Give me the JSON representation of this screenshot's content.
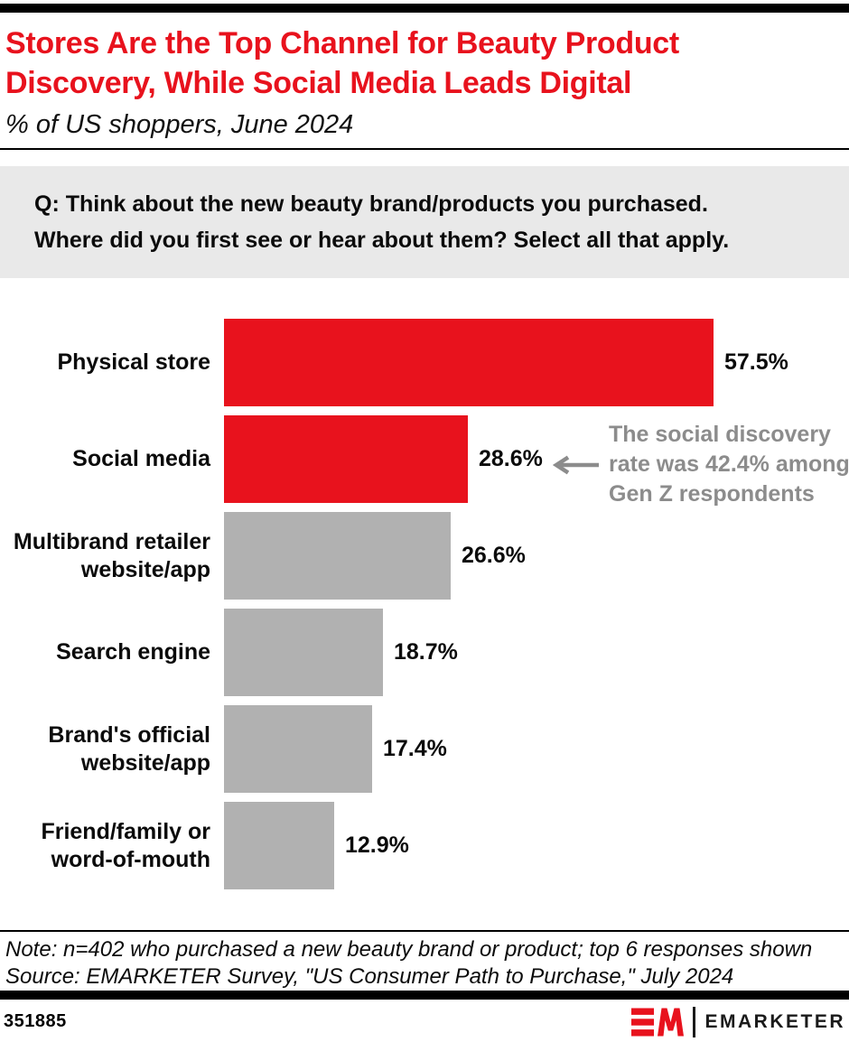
{
  "header": {
    "title": "Stores Are the Top Channel for Beauty Product Discovery, While Social Media Leads Digital",
    "title_lines": [
      "Stores Are the Top Channel for Beauty Product",
      "Discovery, While Social Media Leads Digital"
    ],
    "subtitle": "% of US shoppers, June 2024"
  },
  "question": {
    "text": "Q: Think about the new beauty brand/products you purchased. Where did you first see or hear about them? Select all that apply.",
    "lines": [
      "Q: Think about the new beauty brand/products you purchased.",
      "Where did you first see or hear about them? Select all that apply."
    ]
  },
  "annotation": {
    "text": "The social discovery rate was 42.4% among Gen Z respondents",
    "lines": [
      "The social discovery",
      "rate was 42.4% among",
      "Gen Z respondents"
    ],
    "arrow_icon": "left-arrow",
    "points_to": "Social media 28.6%"
  },
  "chart_data": {
    "type": "bar",
    "orientation": "horizontal",
    "title": "Stores Are the Top Channel for Beauty Product Discovery, While Social Media Leads Digital",
    "subtitle": "% of US shoppers, June 2024",
    "unit": "%",
    "categories": [
      "Physical store",
      "Social media",
      "Multibrand retailer website/app",
      "Search engine",
      "Brand's official website/app",
      "Friend/family or word-of-mouth"
    ],
    "category_lines": [
      [
        "Physical store"
      ],
      [
        "Social media"
      ],
      [
        "Multibrand retailer",
        "website/app"
      ],
      [
        "Search engine"
      ],
      [
        "Brand's official",
        "website/app"
      ],
      [
        "Friend/family or",
        "word-of-mouth"
      ]
    ],
    "values": [
      57.5,
      28.6,
      26.6,
      18.7,
      17.4,
      12.9
    ],
    "value_labels": [
      "57.5%",
      "28.6%",
      "26.6%",
      "18.7%",
      "17.4%",
      "12.9%"
    ],
    "bar_colors": [
      "#E8121D",
      "#E8121D",
      "#B1B1B1",
      "#B1B1B1",
      "#B1B1B1",
      "#B1B1B1"
    ],
    "xlim": [
      0,
      61
    ],
    "grid": false,
    "legend": false,
    "value_labels_position": "right-of-bar"
  },
  "footer": {
    "note": "Note: n=402 who purchased a new beauty brand or product; top 6 responses shown",
    "source": "Source: EMARKETER Survey, \"US Consumer Path to Purchase,\" July 2024",
    "chart_id": "351885",
    "brand": "EMARKETER"
  },
  "colors": {
    "accent_red": "#E8121D",
    "bar_gray": "#B1B1B1",
    "annotation_gray": "#8C8C8C",
    "question_bg": "#E9E9E9",
    "black": "#000000"
  }
}
